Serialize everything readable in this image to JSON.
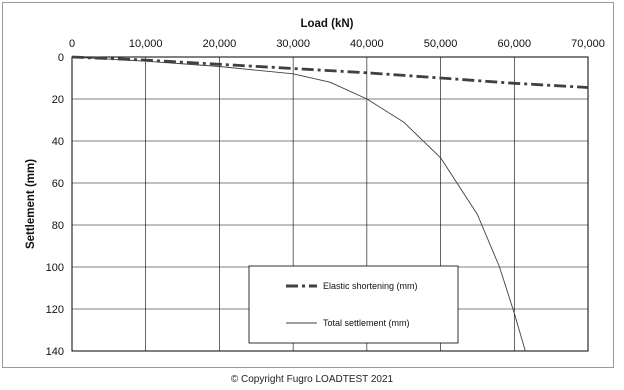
{
  "chart_data": {
    "type": "line",
    "xlabel": "Load (kN)",
    "ylabel": "Settlement (mm)",
    "xlim": [
      0,
      70000
    ],
    "ylim": [
      0,
      140
    ],
    "y_inverted": true,
    "x_axis_position": "top",
    "x_ticks": [
      "0",
      "10,000",
      "20,000",
      "30,000",
      "40,000",
      "50,000",
      "60,000",
      "70,000"
    ],
    "y_ticks": [
      "0",
      "20",
      "40",
      "60",
      "80",
      "100",
      "120",
      "140"
    ],
    "grid": true,
    "legend_position": "bottom-right inside plot",
    "series": [
      {
        "name": "Elastic shortening (mm)",
        "style": "dash-dot",
        "color": "#404040",
        "x": [
          0,
          10000,
          20000,
          30000,
          40000,
          50000,
          60000,
          70000
        ],
        "y": [
          0,
          1.5,
          3.5,
          5.5,
          7.5,
          10,
          12.5,
          14.5
        ]
      },
      {
        "name": "Total settlement (mm)",
        "style": "solid",
        "color": "#404040",
        "x": [
          0,
          10000,
          20000,
          30000,
          35000,
          40000,
          45000,
          50000,
          55000,
          58000,
          60000,
          61500
        ],
        "y": [
          0,
          2,
          4.5,
          8,
          12,
          20,
          31,
          48,
          75,
          100,
          122,
          140
        ]
      }
    ]
  },
  "copyright": "© Copyright Fugro LOADTEST 2021"
}
